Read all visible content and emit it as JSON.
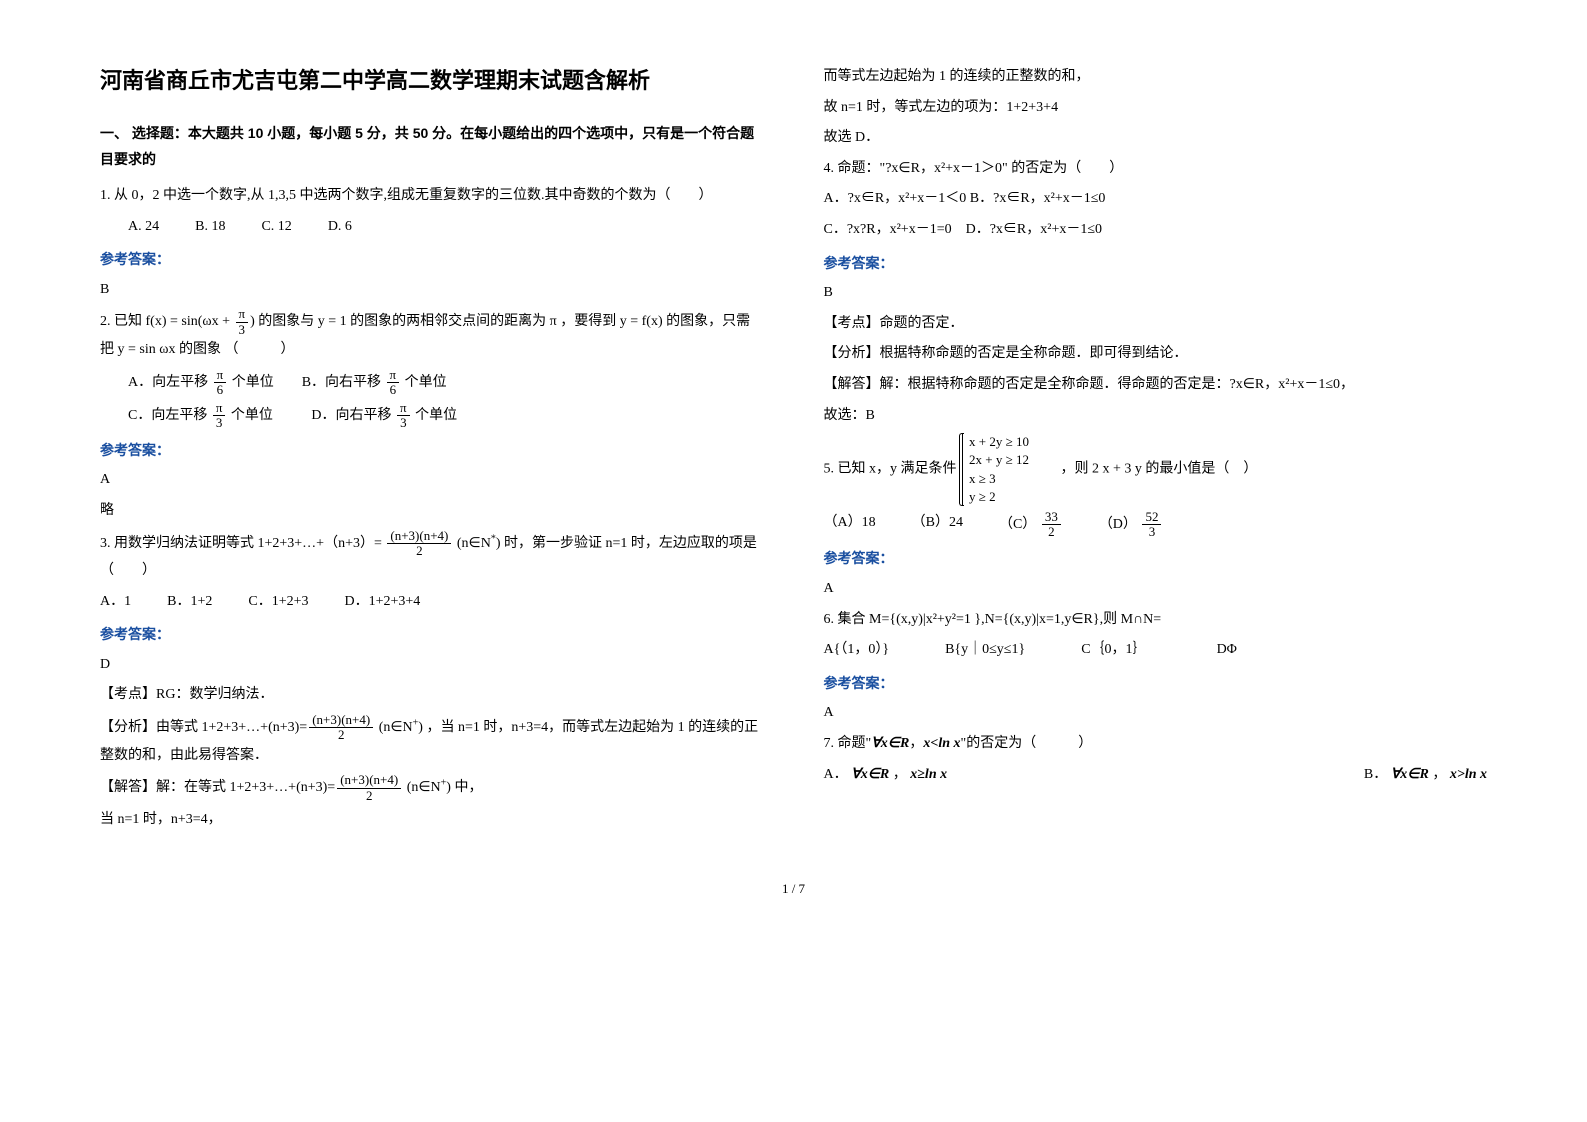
{
  "title": "河南省商丘市尤吉屯第二中学高二数学理期末试题含解析",
  "section1_head": "一、 选择题：本大题共 10 小题，每小题 5 分，共 50 分。在每小题给出的四个选项中，只有是一个符合题目要求的",
  "ans_label": "参考答案：",
  "footer": "1 / 7",
  "q1_text": "1. 从 0，2 中选一个数字,从 1,3,5 中选两个数字,组成无重复数字的三位数.其中奇数的个数为（　　）",
  "q1_opts": {
    "a": "A. 24",
    "b": "B. 18",
    "c": "C. 12",
    "d": "D. 6"
  },
  "q1_ans": "B",
  "q2_text_a": "2. 已知",
  "q2_formula1_lhs": "f(x) = sin(ωx + ",
  "q2_formula1_frac_num": "π",
  "q2_formula1_frac_den": "3",
  "q2_formula1_rhs": ")",
  "q2_text_b": "的图象与",
  "q2_y1": "y = 1",
  "q2_text_c": "的图象的两相邻交点间的距离为",
  "q2_pi": "π",
  "q2_text_d": "，要得到",
  "q2_yfx": "y = f(x)",
  "q2_text_e": "的图象，只需把",
  "q2_ysin": "y = sin ωx",
  "q2_text_f": "的图象    （　　　）",
  "q2_opts": {
    "a_pre": "A．向左平移",
    "a_post": "个单位",
    "b_pre": "B．向右平移",
    "b_post": "个单位",
    "c_pre": "C．向左平移",
    "c_post": "个单位",
    "d_pre": "D．向右平移",
    "d_post": "个单位",
    "pi": "π",
    "six": "6",
    "three": "3"
  },
  "q2_ans": "A",
  "q2_ans2": "略",
  "q3_text_a": "3. 用数学归纳法证明等式 1+2+3+…+（n+3）=",
  "q3_frac_num": "(n+3)(n+4)",
  "q3_frac_den": "2",
  "q3_text_b": "(n∈N",
  "q3_star": "*",
  "q3_text_c": ")",
  "q3_text_d": "时，第一步验证 n=1 时，左边应取的项是（　　）",
  "q3_opts": {
    "a": "A．1",
    "b": "B．1+2",
    "c": "C．1+2+3",
    "d": "D．1+2+3+4"
  },
  "q3_ans": "D",
  "q3_kd": "【考点】RG：数学归纳法．",
  "q3_fx_a": "【分析】由等式",
  "q3_fx_formula": "1+2+3+…+(n+3)=",
  "q3_fx_b": "(n∈N",
  "q3_fx_c": ")",
  "q3_fx_d": "，当 n=1 时，n+3=4，而等式左边起始为 1 的连续的正整数的和，由此易得答案．",
  "q3_jd_a": "【解答】解：在等式",
  "q3_jd_b": "中，",
  "q3_jd_c": "当 n=1 时，n+3=4，",
  "r_line1": "而等式左边起始为 1 的连续的正整数的和，",
  "r_line2": "故 n=1 时，等式左边的项为：1+2+3+4",
  "r_line3": "故选 D．",
  "q4_text": "4. 命题：\"?x∈R，x²+x－1＞0\" 的否定为（　　）",
  "q4_opts": {
    "a": "A．?x∈R，x²+x－1＜0",
    "b": "B．?x∈R，x²+x－1≤0",
    "c": "C．?x?R，x²+x－1=0",
    "d": "D．?x∈R，x²+x－1≤0"
  },
  "q4_ans": "B",
  "q4_kd": "【考点】命题的否定．",
  "q4_fx": "【分析】根据特称命题的否定是全称命题．即可得到结论．",
  "q4_jd": "【解答】解：根据特称命题的否定是全称命题．得命题的否定是：?x∈R，x²+x－1≤0，",
  "q4_jd2": "故选：B",
  "q5_text_a": "5. 已知 x，y 满足条件",
  "q5_c1": "x + 2y ≥ 10",
  "q5_c2": "2x + y ≥ 12",
  "q5_c3": "x ≥ 3",
  "q5_c4": "y ≥ 2",
  "q5_text_b": "　　，则 2 x + 3 y 的最小值是（　）",
  "q5_opts": {
    "a": "（A）18",
    "b": "（B）24",
    "c_pre": "（C）",
    "c_num": "33",
    "c_den": "2",
    "d_pre": "（D）",
    "d_num": "52",
    "d_den": "3"
  },
  "q5_ans": "A",
  "q6_text": "6. 集合 M={(x,y)|x²+y²=1 },N={(x,y)|x=1,y∈R},则 M∩N=",
  "q6_opts": {
    "a": "A{（1，0）}",
    "b": "B{y｜0≤y≤1}",
    "c": "C｛0，1｝",
    "d": "DΦ"
  },
  "q6_ans": "A",
  "q7_text_a": "7. 命题\"",
  "q7_f1": "∀x∈R",
  "q7_text_b": "，",
  "q7_f2": "x<ln x",
  "q7_text_c": "\"的否定为（　　　）",
  "q7_opts": {
    "a_pre": "A．",
    "a_f1": "∀x∈R",
    "a_mid": "，",
    "a_f2": "x≥ln x",
    "b_pre": "B．",
    "b_f1": "∀x∈R",
    "b_mid": "，",
    "b_f2": "x>ln x"
  }
}
